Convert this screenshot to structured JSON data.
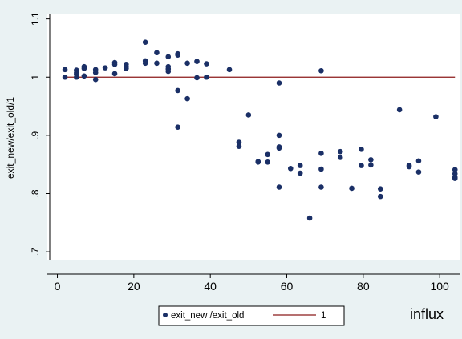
{
  "colors": {
    "background": "#eaf2f3",
    "plot_background": "#ffffff",
    "marker": "#1a2f66",
    "reference_line": "#8b1a1a"
  },
  "chart_data": {
    "type": "scatter",
    "xlabel": "influx",
    "ylabel": "exit_new/exit_old/1",
    "xlim": [
      -2,
      105
    ],
    "ylim": [
      0.685,
      1.105
    ],
    "xticks": [
      0,
      20,
      40,
      60,
      80,
      100
    ],
    "xtick_labels": [
      "0",
      "20",
      "40",
      "60",
      "80",
      "100"
    ],
    "yticks": [
      0.7,
      0.8,
      0.9,
      1.0,
      1.1
    ],
    "ytick_labels": [
      ".7",
      ".8",
      ".9",
      "1",
      "1.1"
    ],
    "grid": false,
    "legend_position": "bottom",
    "series": [
      {
        "name": "exit_new /exit_old",
        "kind": "scatter",
        "points": [
          [
            2,
            1.013
          ],
          [
            2,
            1.0
          ],
          [
            5,
            1.012
          ],
          [
            5,
            1.008
          ],
          [
            5,
            1.005
          ],
          [
            5,
            1.0
          ],
          [
            7,
            1.018
          ],
          [
            7,
            1.015
          ],
          [
            7,
            1.002
          ],
          [
            10,
            1.013
          ],
          [
            10,
            1.008
          ],
          [
            10,
            0.996
          ],
          [
            12.5,
            1.016
          ],
          [
            15,
            1.025
          ],
          [
            15,
            1.022
          ],
          [
            15,
            1.006
          ],
          [
            18,
            1.022
          ],
          [
            18,
            1.018
          ],
          [
            18,
            1.015
          ],
          [
            23,
            1.06
          ],
          [
            23,
            1.028
          ],
          [
            23,
            1.024
          ],
          [
            26,
            1.042
          ],
          [
            26,
            1.024
          ],
          [
            29,
            1.035
          ],
          [
            29,
            1.018
          ],
          [
            29,
            1.014
          ],
          [
            29,
            1.01
          ],
          [
            31.5,
            1.04
          ],
          [
            31.5,
            1.038
          ],
          [
            31.5,
            0.977
          ],
          [
            31.5,
            0.914
          ],
          [
            34,
            1.024
          ],
          [
            34,
            0.963
          ],
          [
            36.5,
            1.027
          ],
          [
            36.5,
            0.999
          ],
          [
            39,
            1.023
          ],
          [
            39,
            1.0
          ],
          [
            45,
            1.013
          ],
          [
            47.5,
            0.888
          ],
          [
            47.5,
            0.881
          ],
          [
            50,
            0.935
          ],
          [
            52.5,
            0.855
          ],
          [
            52.5,
            0.854
          ],
          [
            55,
            0.867
          ],
          [
            55,
            0.854
          ],
          [
            58,
            0.99
          ],
          [
            58,
            0.9
          ],
          [
            58,
            0.88
          ],
          [
            58,
            0.878
          ],
          [
            58,
            0.811
          ],
          [
            61,
            0.843
          ],
          [
            63.5,
            0.848
          ],
          [
            63.5,
            0.835
          ],
          [
            66,
            0.758
          ],
          [
            69,
            1.011
          ],
          [
            69,
            0.869
          ],
          [
            69,
            0.842
          ],
          [
            69,
            0.811
          ],
          [
            74,
            0.872
          ],
          [
            74,
            0.862
          ],
          [
            77,
            0.809
          ],
          [
            79.5,
            0.876
          ],
          [
            79.5,
            0.848
          ],
          [
            82,
            0.858
          ],
          [
            82,
            0.849
          ],
          [
            84.5,
            0.808
          ],
          [
            84.5,
            0.795
          ],
          [
            89.5,
            0.944
          ],
          [
            92,
            0.848
          ],
          [
            92,
            0.846
          ],
          [
            94.5,
            0.856
          ],
          [
            94.5,
            0.837
          ],
          [
            99,
            0.932
          ],
          [
            104,
            0.841
          ],
          [
            104,
            0.834
          ],
          [
            104,
            0.828
          ],
          [
            104,
            0.826
          ]
        ]
      },
      {
        "name": "1",
        "kind": "line",
        "y": 1.0,
        "x_range": [
          2,
          104
        ]
      }
    ]
  }
}
